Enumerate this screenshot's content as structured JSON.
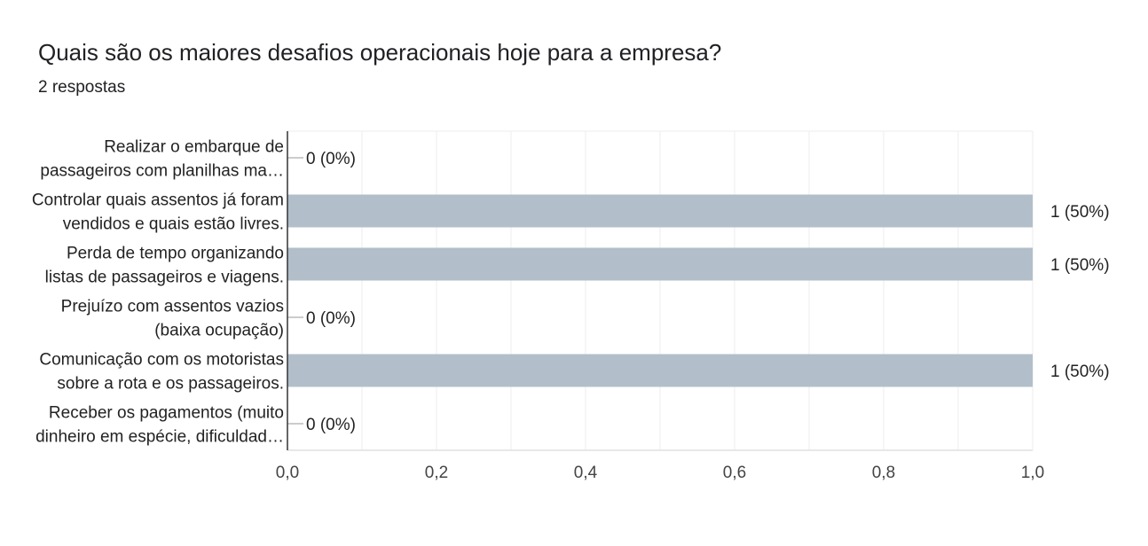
{
  "question": {
    "title": "Quais são os maiores desafios operacionais hoje para a empresa?",
    "responses": "2 respostas"
  },
  "colors": {
    "bar": "#b2bfca",
    "grid": "#eeeeee",
    "axis": "#333333",
    "text": "#222222"
  },
  "chart_data": {
    "type": "bar",
    "orientation": "horizontal",
    "categories": [
      [
        "Realizar o embarque de",
        "passageiros com planilhas ma…"
      ],
      [
        "Controlar quais assentos já foram",
        "vendidos e quais estão livres."
      ],
      [
        "Perda de tempo organizando",
        "listas de passageiros e viagens."
      ],
      [
        "Prejuízo com assentos vazios",
        "(baixa ocupação)"
      ],
      [
        "Comunicação com os motoristas",
        "sobre a rota e os passageiros."
      ],
      [
        "Receber os pagamentos (muito",
        "dinheiro em espécie, dificuldad…"
      ]
    ],
    "values": [
      0,
      1,
      1,
      0,
      1,
      0
    ],
    "value_labels": [
      "0 (0%)",
      "1 (50%)",
      "1 (50%)",
      "0 (0%)",
      "1 (50%)",
      "0 (0%)"
    ],
    "xlim": [
      0,
      1
    ],
    "xticks": [
      0,
      0.2,
      0.4,
      0.6,
      0.8,
      1
    ],
    "xtick_labels": [
      "0,0",
      "0,2",
      "0,4",
      "0,6",
      "0,8",
      "1,0"
    ],
    "grid": true
  }
}
